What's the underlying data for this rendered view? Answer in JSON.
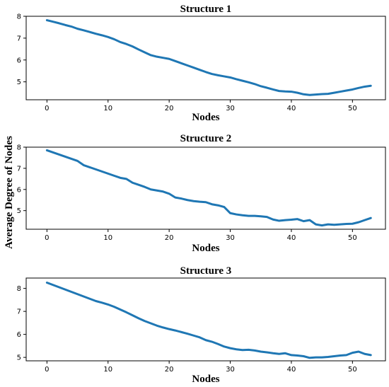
{
  "figure": {
    "ylabel": "Average Degree of Nodes",
    "line_color": "#1f77b4"
  },
  "chart_data": [
    {
      "type": "line",
      "title": "Structure 1",
      "xlabel": "Nodes",
      "ylabel": "",
      "xlim": [
        -3.4,
        55.4
      ],
      "ylim": [
        4.18,
        8.0
      ],
      "xticks": [
        0,
        10,
        20,
        30,
        40,
        50
      ],
      "yticks": [
        5,
        6,
        7,
        8
      ],
      "grid": false,
      "series": [
        {
          "x": [
            0,
            1,
            2,
            3,
            4,
            5,
            6,
            7,
            8,
            9,
            10,
            11,
            12,
            13,
            14,
            15,
            16,
            17,
            18,
            19,
            20,
            21,
            22,
            23,
            24,
            25,
            26,
            27,
            28,
            29,
            30,
            31,
            32,
            33,
            34,
            35,
            36,
            37,
            38,
            39,
            40,
            41,
            42,
            43,
            44,
            45,
            46,
            47,
            48,
            49,
            50,
            51,
            52,
            53
          ],
          "y": [
            7.82,
            7.75,
            7.68,
            7.6,
            7.53,
            7.43,
            7.36,
            7.28,
            7.2,
            7.13,
            7.05,
            6.95,
            6.82,
            6.73,
            6.62,
            6.48,
            6.35,
            6.22,
            6.15,
            6.1,
            6.05,
            5.95,
            5.85,
            5.75,
            5.65,
            5.55,
            5.45,
            5.36,
            5.3,
            5.25,
            5.2,
            5.12,
            5.05,
            4.98,
            4.9,
            4.8,
            4.73,
            4.65,
            4.58,
            4.56,
            4.55,
            4.5,
            4.43,
            4.4,
            4.42,
            4.44,
            4.45,
            4.5,
            4.55,
            4.6,
            4.65,
            4.72,
            4.78,
            4.82
          ]
        }
      ]
    },
    {
      "type": "line",
      "title": "Structure 2",
      "xlabel": "Nodes",
      "ylabel": "",
      "xlim": [
        -3.4,
        55.4
      ],
      "ylim": [
        4.12,
        8.0
      ],
      "xticks": [
        0,
        10,
        20,
        30,
        40,
        50
      ],
      "yticks": [
        5,
        6,
        7,
        8
      ],
      "grid": false,
      "series": [
        {
          "x": [
            0,
            1,
            2,
            3,
            4,
            5,
            6,
            7,
            8,
            9,
            10,
            11,
            12,
            13,
            14,
            15,
            16,
            17,
            18,
            19,
            20,
            21,
            22,
            23,
            24,
            25,
            26,
            27,
            28,
            29,
            30,
            31,
            32,
            33,
            34,
            35,
            36,
            37,
            38,
            39,
            40,
            41,
            42,
            43,
            44,
            45,
            46,
            47,
            48,
            49,
            50,
            51,
            52,
            53
          ],
          "y": [
            7.85,
            7.75,
            7.65,
            7.55,
            7.45,
            7.35,
            7.15,
            7.05,
            6.95,
            6.85,
            6.75,
            6.65,
            6.55,
            6.5,
            6.32,
            6.22,
            6.12,
            6.0,
            5.95,
            5.9,
            5.8,
            5.62,
            5.57,
            5.5,
            5.45,
            5.42,
            5.4,
            5.3,
            5.25,
            5.17,
            4.88,
            4.82,
            4.78,
            4.75,
            4.75,
            4.73,
            4.7,
            4.58,
            4.52,
            4.55,
            4.57,
            4.6,
            4.5,
            4.55,
            4.35,
            4.3,
            4.35,
            4.33,
            4.35,
            4.37,
            4.38,
            4.45,
            4.55,
            4.65
          ]
        }
      ]
    },
    {
      "type": "line",
      "title": "Structure 3",
      "xlabel": "Nodes",
      "ylabel": "",
      "xlim": [
        -3.4,
        55.4
      ],
      "ylim": [
        4.85,
        8.45
      ],
      "xticks": [
        0,
        10,
        20,
        30,
        40,
        50
      ],
      "yticks": [
        5,
        6,
        7,
        8
      ],
      "grid": false,
      "series": [
        {
          "x": [
            0,
            1,
            2,
            3,
            4,
            5,
            6,
            7,
            8,
            9,
            10,
            11,
            12,
            13,
            14,
            15,
            16,
            17,
            18,
            19,
            20,
            21,
            22,
            23,
            24,
            25,
            26,
            27,
            28,
            29,
            30,
            31,
            32,
            33,
            34,
            35,
            36,
            37,
            38,
            39,
            40,
            41,
            42,
            43,
            44,
            45,
            46,
            47,
            48,
            49,
            50,
            51,
            52,
            53
          ],
          "y": [
            8.25,
            8.15,
            8.05,
            7.95,
            7.85,
            7.75,
            7.65,
            7.55,
            7.45,
            7.38,
            7.3,
            7.2,
            7.08,
            6.96,
            6.83,
            6.7,
            6.58,
            6.48,
            6.38,
            6.3,
            6.23,
            6.17,
            6.1,
            6.03,
            5.95,
            5.87,
            5.75,
            5.68,
            5.58,
            5.47,
            5.4,
            5.35,
            5.32,
            5.33,
            5.3,
            5.25,
            5.22,
            5.18,
            5.15,
            5.18,
            5.1,
            5.08,
            5.05,
            4.98,
            5.0,
            5.0,
            5.02,
            5.05,
            5.08,
            5.1,
            5.2,
            5.25,
            5.15,
            5.1
          ]
        }
      ]
    }
  ]
}
